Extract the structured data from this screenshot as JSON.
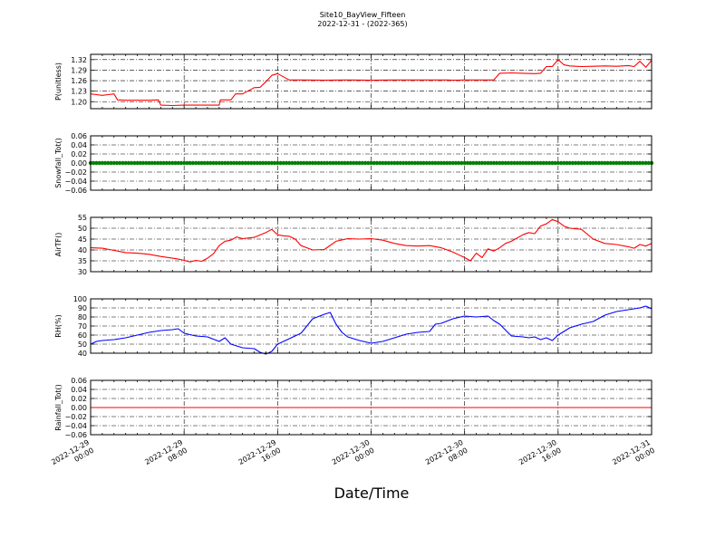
{
  "title_line1": "Site10_BayView_Fifteen",
  "title_line2": "2022-12-31 - (2022-365)",
  "xlabel": "Date/Time",
  "x_tick_labels": [
    [
      "2022-12-29",
      "00:00"
    ],
    [
      "2022-12-29",
      "08:00"
    ],
    [
      "2022-12-29",
      "16:00"
    ],
    [
      "2022-12-30",
      "00:00"
    ],
    [
      "2022-12-30",
      "08:00"
    ],
    [
      "2022-12-30",
      "16:00"
    ],
    [
      "2022-12-31",
      "00:00"
    ]
  ],
  "colors": {
    "pressure": "#ff0000",
    "snowfall": "#007f00",
    "airtemp": "#ff0000",
    "rh": "#0000ff",
    "rainfall": "#ff0000"
  },
  "chart_data": [
    {
      "type": "line",
      "ylabel": "P(unitless)",
      "xlim_hours": [
        0,
        48
      ],
      "ylim": [
        1.18,
        1.335
      ],
      "yticks": [
        "1.20",
        "1.23",
        "1.26",
        "1.29",
        "1.32"
      ],
      "ytick_values": [
        1.2,
        1.23,
        1.26,
        1.29,
        1.32
      ],
      "grid": true,
      "color": "pressure",
      "series": [
        {
          "x": [
            0,
            0.5,
            1,
            1.5,
            2,
            2.3,
            3,
            4,
            5,
            5.8,
            6,
            7,
            8,
            9,
            10,
            11,
            11.1,
            12,
            12.4,
            13,
            14,
            14.5,
            15,
            15.5,
            16,
            17,
            18,
            20,
            22,
            24,
            26,
            28,
            30,
            30.5,
            31,
            32,
            33,
            34,
            34.5,
            35,
            36,
            37,
            38,
            38.5,
            39,
            39.5,
            40,
            40.5,
            41,
            42,
            43,
            44,
            45,
            46,
            46.5,
            47,
            47.5,
            48
          ],
          "y": [
            1.222,
            1.22,
            1.218,
            1.22,
            1.222,
            1.205,
            1.204,
            1.204,
            1.204,
            1.205,
            1.19,
            1.189,
            1.19,
            1.19,
            1.19,
            1.19,
            1.205,
            1.205,
            1.222,
            1.222,
            1.24,
            1.241,
            1.257,
            1.275,
            1.28,
            1.262,
            1.262,
            1.261,
            1.262,
            1.261,
            1.262,
            1.262,
            1.262,
            1.262,
            1.261,
            1.262,
            1.262,
            1.262,
            1.262,
            1.281,
            1.282,
            1.281,
            1.28,
            1.281,
            1.3,
            1.3,
            1.32,
            1.305,
            1.302,
            1.3,
            1.301,
            1.302,
            1.301,
            1.303,
            1.3,
            1.315,
            1.298,
            1.318
          ]
        }
      ]
    },
    {
      "type": "scatter",
      "ylabel": "Snowfall_Tot()",
      "xlim_hours": [
        0,
        48
      ],
      "ylim": [
        -0.06,
        0.06
      ],
      "yticks": [
        "0.06",
        "0.04",
        "0.02",
        "0.00",
        "−0.02",
        "−0.04",
        "−0.06"
      ],
      "ytick_values": [
        0.06,
        0.04,
        0.02,
        0.0,
        -0.02,
        -0.04,
        -0.06
      ],
      "grid": true,
      "color": "snowfall",
      "constant_value": 0.0
    },
    {
      "type": "line",
      "ylabel": "AirTF()",
      "xlim_hours": [
        0,
        48
      ],
      "ylim": [
        30,
        55
      ],
      "yticks": [
        "30",
        "35",
        "40",
        "45",
        "50",
        "55"
      ],
      "ytick_values": [
        30,
        35,
        40,
        45,
        50,
        55
      ],
      "grid": true,
      "color": "airtemp",
      "series": [
        {
          "x": [
            0,
            1,
            2,
            3,
            4,
            5,
            6,
            7,
            7.5,
            8,
            8.5,
            9,
            9.5,
            10,
            10.5,
            11,
            11.5,
            12,
            12.5,
            13,
            14,
            15,
            15.5,
            16,
            16.5,
            17,
            17.5,
            18,
            19,
            20,
            21,
            22,
            23,
            24,
            25,
            26,
            27,
            28,
            29,
            30,
            31,
            32,
            32.5,
            33,
            33.5,
            34,
            34.5,
            35,
            35.5,
            36,
            37,
            37.5,
            38,
            38.5,
            39,
            39.5,
            40,
            40.5,
            41,
            42,
            43,
            44,
            45,
            46,
            46.5,
            47,
            47.5,
            48
          ],
          "y": [
            41,
            40.8,
            39.8,
            38.8,
            38.5,
            38,
            37,
            36.2,
            35.8,
            35.2,
            34.5,
            35.2,
            34.8,
            36.2,
            38.2,
            42,
            44,
            44.5,
            46,
            45.2,
            45.8,
            48,
            49.5,
            47,
            46.5,
            46.3,
            45,
            42,
            40,
            40.2,
            44,
            45.2,
            45,
            45.2,
            44.5,
            43,
            42,
            41.8,
            42,
            41,
            39,
            36.5,
            35,
            38.5,
            36.5,
            40.5,
            39.5,
            41,
            43,
            44,
            47,
            48,
            47.5,
            51,
            52,
            54,
            53,
            51,
            50,
            49.5,
            45,
            43,
            42.5,
            41.5,
            40.8,
            42.5,
            41.8,
            43
          ]
        }
      ]
    },
    {
      "type": "line",
      "ylabel": "RH(%)",
      "xlim_hours": [
        0,
        48
      ],
      "ylim": [
        40,
        100
      ],
      "yticks": [
        "40",
        "50",
        "60",
        "70",
        "80",
        "90",
        "100"
      ],
      "ytick_values": [
        40,
        50,
        60,
        70,
        80,
        90,
        100
      ],
      "grid": true,
      "color": "rh",
      "series": [
        {
          "x": [
            0,
            0.5,
            1,
            2,
            3,
            4,
            5,
            6,
            7,
            7.5,
            8,
            9,
            10,
            11,
            11.5,
            12,
            12.5,
            13,
            14,
            14.5,
            15,
            15.5,
            16,
            16.5,
            17,
            18,
            18.5,
            19,
            20,
            20.5,
            21,
            21.5,
            22,
            23,
            24,
            25,
            26,
            27,
            28,
            29,
            29.5,
            30,
            31,
            32,
            33,
            34,
            34.5,
            35,
            36,
            37,
            37.5,
            38,
            38.5,
            39,
            39.5,
            40,
            41,
            42,
            43,
            44,
            45,
            46,
            47,
            47.5,
            48
          ],
          "y": [
            50,
            53,
            54,
            55,
            57,
            60,
            63,
            65,
            66,
            67,
            62,
            59,
            58,
            53,
            57,
            50,
            48,
            46,
            45,
            41,
            39,
            42,
            50,
            53,
            56,
            62,
            70,
            78,
            83,
            85,
            72,
            63,
            58,
            54,
            51,
            53,
            57,
            61,
            63,
            64,
            72,
            73,
            78,
            81,
            80,
            81,
            76,
            72,
            59,
            58,
            57,
            58,
            55,
            57,
            54,
            60,
            68,
            72,
            75,
            82,
            86,
            88,
            90,
            92,
            89
          ]
        }
      ]
    },
    {
      "type": "line",
      "ylabel": "Rainfall_Tot()",
      "xlim_hours": [
        0,
        48
      ],
      "ylim": [
        -0.06,
        0.06
      ],
      "yticks": [
        "0.06",
        "0.04",
        "0.02",
        "0.00",
        "−0.02",
        "−0.04",
        "−0.06"
      ],
      "ytick_values": [
        0.06,
        0.04,
        0.02,
        0.0,
        -0.02,
        -0.04,
        -0.06
      ],
      "grid": true,
      "color": "rainfall",
      "constant_value": 0.0
    }
  ]
}
